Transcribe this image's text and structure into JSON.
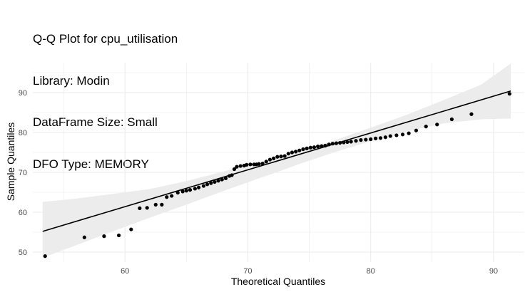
{
  "chart_data": {
    "type": "scatter",
    "title_lines": [
      "Q-Q Plot for cpu_utilisation",
      "Library: Modin",
      "DataFrame Size: Small",
      "DFO Type: MEMORY"
    ],
    "xlabel": "Theoretical Quantiles",
    "ylabel": "Sample Quantiles",
    "xlim": [
      52.5,
      92.5
    ],
    "ylim": [
      47.5,
      97.5
    ],
    "x_ticks": [
      60,
      70,
      80,
      90
    ],
    "y_ticks": [
      50,
      60,
      70,
      80,
      90
    ],
    "x_tick_labels": [
      "60",
      "70",
      "80",
      "90"
    ],
    "y_tick_labels": [
      "50",
      "60",
      "70",
      "80",
      "90"
    ],
    "grid": true,
    "colors": {
      "points": "#000000",
      "line": "#000000",
      "band": "#ebebeb",
      "grid": "#ebebeb"
    },
    "points": [
      {
        "x": 53.5,
        "y": 49.0
      },
      {
        "x": 56.7,
        "y": 53.7
      },
      {
        "x": 58.3,
        "y": 54.0
      },
      {
        "x": 59.5,
        "y": 54.2
      },
      {
        "x": 60.5,
        "y": 55.7
      },
      {
        "x": 61.2,
        "y": 61.0
      },
      {
        "x": 61.8,
        "y": 61.1
      },
      {
        "x": 62.5,
        "y": 61.9
      },
      {
        "x": 63.0,
        "y": 61.9
      },
      {
        "x": 63.4,
        "y": 63.8
      },
      {
        "x": 63.8,
        "y": 64.1
      },
      {
        "x": 64.3,
        "y": 64.9
      },
      {
        "x": 64.7,
        "y": 65.2
      },
      {
        "x": 65.0,
        "y": 65.4
      },
      {
        "x": 65.3,
        "y": 65.6
      },
      {
        "x": 65.7,
        "y": 65.9
      },
      {
        "x": 66.0,
        "y": 66.2
      },
      {
        "x": 66.4,
        "y": 66.6
      },
      {
        "x": 66.7,
        "y": 67.0
      },
      {
        "x": 67.0,
        "y": 67.3
      },
      {
        "x": 67.3,
        "y": 67.6
      },
      {
        "x": 67.6,
        "y": 67.9
      },
      {
        "x": 67.9,
        "y": 68.2
      },
      {
        "x": 68.2,
        "y": 68.5
      },
      {
        "x": 68.5,
        "y": 69.1
      },
      {
        "x": 68.7,
        "y": 69.3
      },
      {
        "x": 68.9,
        "y": 70.8
      },
      {
        "x": 69.1,
        "y": 71.4
      },
      {
        "x": 69.4,
        "y": 71.6
      },
      {
        "x": 69.7,
        "y": 71.7
      },
      {
        "x": 69.9,
        "y": 71.9
      },
      {
        "x": 70.2,
        "y": 72.0
      },
      {
        "x": 70.5,
        "y": 72.0
      },
      {
        "x": 70.7,
        "y": 72.0
      },
      {
        "x": 70.9,
        "y": 72.1
      },
      {
        "x": 71.2,
        "y": 72.2
      },
      {
        "x": 71.5,
        "y": 72.7
      },
      {
        "x": 71.8,
        "y": 73.2
      },
      {
        "x": 72.1,
        "y": 73.5
      },
      {
        "x": 72.4,
        "y": 73.9
      },
      {
        "x": 72.7,
        "y": 74.0
      },
      {
        "x": 73.0,
        "y": 74.1
      },
      {
        "x": 73.3,
        "y": 74.7
      },
      {
        "x": 73.6,
        "y": 75.0
      },
      {
        "x": 73.9,
        "y": 75.2
      },
      {
        "x": 74.2,
        "y": 75.5
      },
      {
        "x": 74.5,
        "y": 75.8
      },
      {
        "x": 74.8,
        "y": 76.0
      },
      {
        "x": 75.1,
        "y": 76.2
      },
      {
        "x": 75.4,
        "y": 76.3
      },
      {
        "x": 75.7,
        "y": 76.5
      },
      {
        "x": 76.0,
        "y": 76.6
      },
      {
        "x": 76.3,
        "y": 76.7
      },
      {
        "x": 76.6,
        "y": 77.0
      },
      {
        "x": 76.9,
        "y": 77.2
      },
      {
        "x": 77.2,
        "y": 77.3
      },
      {
        "x": 77.5,
        "y": 77.4
      },
      {
        "x": 77.8,
        "y": 77.5
      },
      {
        "x": 78.1,
        "y": 77.6
      },
      {
        "x": 78.4,
        "y": 77.7
      },
      {
        "x": 78.8,
        "y": 77.9
      },
      {
        "x": 79.2,
        "y": 78.1
      },
      {
        "x": 79.6,
        "y": 78.2
      },
      {
        "x": 80.0,
        "y": 78.3
      },
      {
        "x": 80.4,
        "y": 78.5
      },
      {
        "x": 80.8,
        "y": 78.6
      },
      {
        "x": 81.2,
        "y": 78.8
      },
      {
        "x": 81.6,
        "y": 79.1
      },
      {
        "x": 82.1,
        "y": 79.3
      },
      {
        "x": 82.6,
        "y": 79.5
      },
      {
        "x": 83.1,
        "y": 79.8
      },
      {
        "x": 83.7,
        "y": 80.5
      },
      {
        "x": 84.5,
        "y": 81.5
      },
      {
        "x": 85.4,
        "y": 82.0
      },
      {
        "x": 86.6,
        "y": 83.3
      },
      {
        "x": 88.2,
        "y": 84.6
      },
      {
        "x": 91.3,
        "y": 89.7
      }
    ],
    "reference_line": {
      "x": [
        53.3,
        91.4
      ],
      "y": [
        55.2,
        90.4
      ]
    },
    "confidence_band": {
      "x": [
        53.3,
        56.0,
        59.0,
        62.0,
        65.0,
        68.0,
        71.0,
        72.5,
        74.0,
        77.0,
        80.0,
        83.0,
        86.0,
        89.0,
        91.4
      ],
      "upper": [
        62.6,
        63.4,
        64.6,
        65.8,
        67.8,
        70.2,
        72.6,
        73.8,
        75.2,
        78.0,
        81.2,
        84.5,
        88.2,
        92.0,
        97.3
      ],
      "lower": [
        48.6,
        51.7,
        55.2,
        58.6,
        61.9,
        65.3,
        68.6,
        70.2,
        71.9,
        75.0,
        77.8,
        80.3,
        82.3,
        83.3,
        83.5
      ]
    }
  }
}
